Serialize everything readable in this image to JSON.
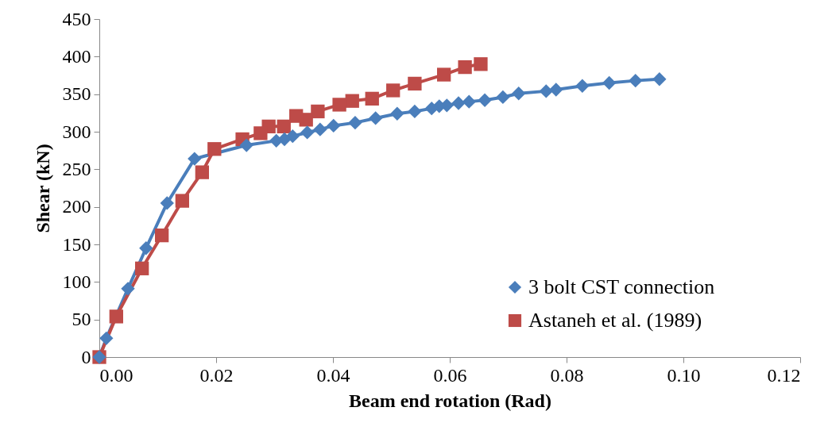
{
  "chart_data": {
    "type": "line",
    "xlabel": "Beam end rotation (Rad)",
    "ylabel": "Shear (kN)",
    "xlim": [
      0,
      0.12
    ],
    "xticks": [
      {
        "value": 0,
        "label": "0.00"
      },
      {
        "value": 0.02,
        "label": "0.02"
      },
      {
        "value": 0.04,
        "label": "0.04"
      },
      {
        "value": 0.06,
        "label": "0.06"
      },
      {
        "value": 0.08,
        "label": "0.08"
      },
      {
        "value": 0.1,
        "label": "0.10"
      },
      {
        "value": 0.12,
        "label": "0.12"
      }
    ],
    "ylim": [
      0,
      450
    ],
    "yticks": [
      0,
      50,
      100,
      150,
      200,
      250,
      300,
      350,
      400,
      450
    ],
    "grid": false,
    "legend": "bottom right",
    "line_style": "solid",
    "series": [
      {
        "name": "3 bolt CST connection",
        "color": "#4a7ebb",
        "marker": "diamond",
        "x": [
          0,
          0.0012,
          0.0049,
          0.008,
          0.0116,
          0.0163,
          0.0252,
          0.0303,
          0.0317,
          0.0331,
          0.0356,
          0.0378,
          0.0401,
          0.0438,
          0.0473,
          0.051,
          0.054,
          0.0569,
          0.0582,
          0.0595,
          0.0615,
          0.0633,
          0.066,
          0.0691,
          0.0718,
          0.0765,
          0.0782,
          0.0827,
          0.0873,
          0.0918,
          0.0959
        ],
        "values": [
          0,
          25,
          91,
          145,
          205,
          264,
          282,
          288,
          290,
          294,
          299,
          303,
          308,
          312,
          318,
          324,
          327,
          331,
          334,
          335,
          338,
          340,
          342,
          346,
          351,
          354,
          356,
          361,
          365,
          368,
          370
        ]
      },
      {
        "name": "Astaneh et al. (1989)",
        "color": "#be4b48",
        "marker": "square",
        "x": [
          0,
          0.0029,
          0.0073,
          0.0107,
          0.0142,
          0.0176,
          0.0197,
          0.0245,
          0.0276,
          0.029,
          0.0316,
          0.0337,
          0.0354,
          0.0374,
          0.0411,
          0.0433,
          0.0467,
          0.0503,
          0.054,
          0.059,
          0.0626,
          0.0653
        ],
        "values": [
          0,
          54,
          118,
          162,
          208,
          246,
          277,
          290,
          298,
          307,
          307,
          321,
          316,
          327,
          336,
          341,
          344,
          355,
          364,
          376,
          386,
          390
        ]
      }
    ]
  }
}
